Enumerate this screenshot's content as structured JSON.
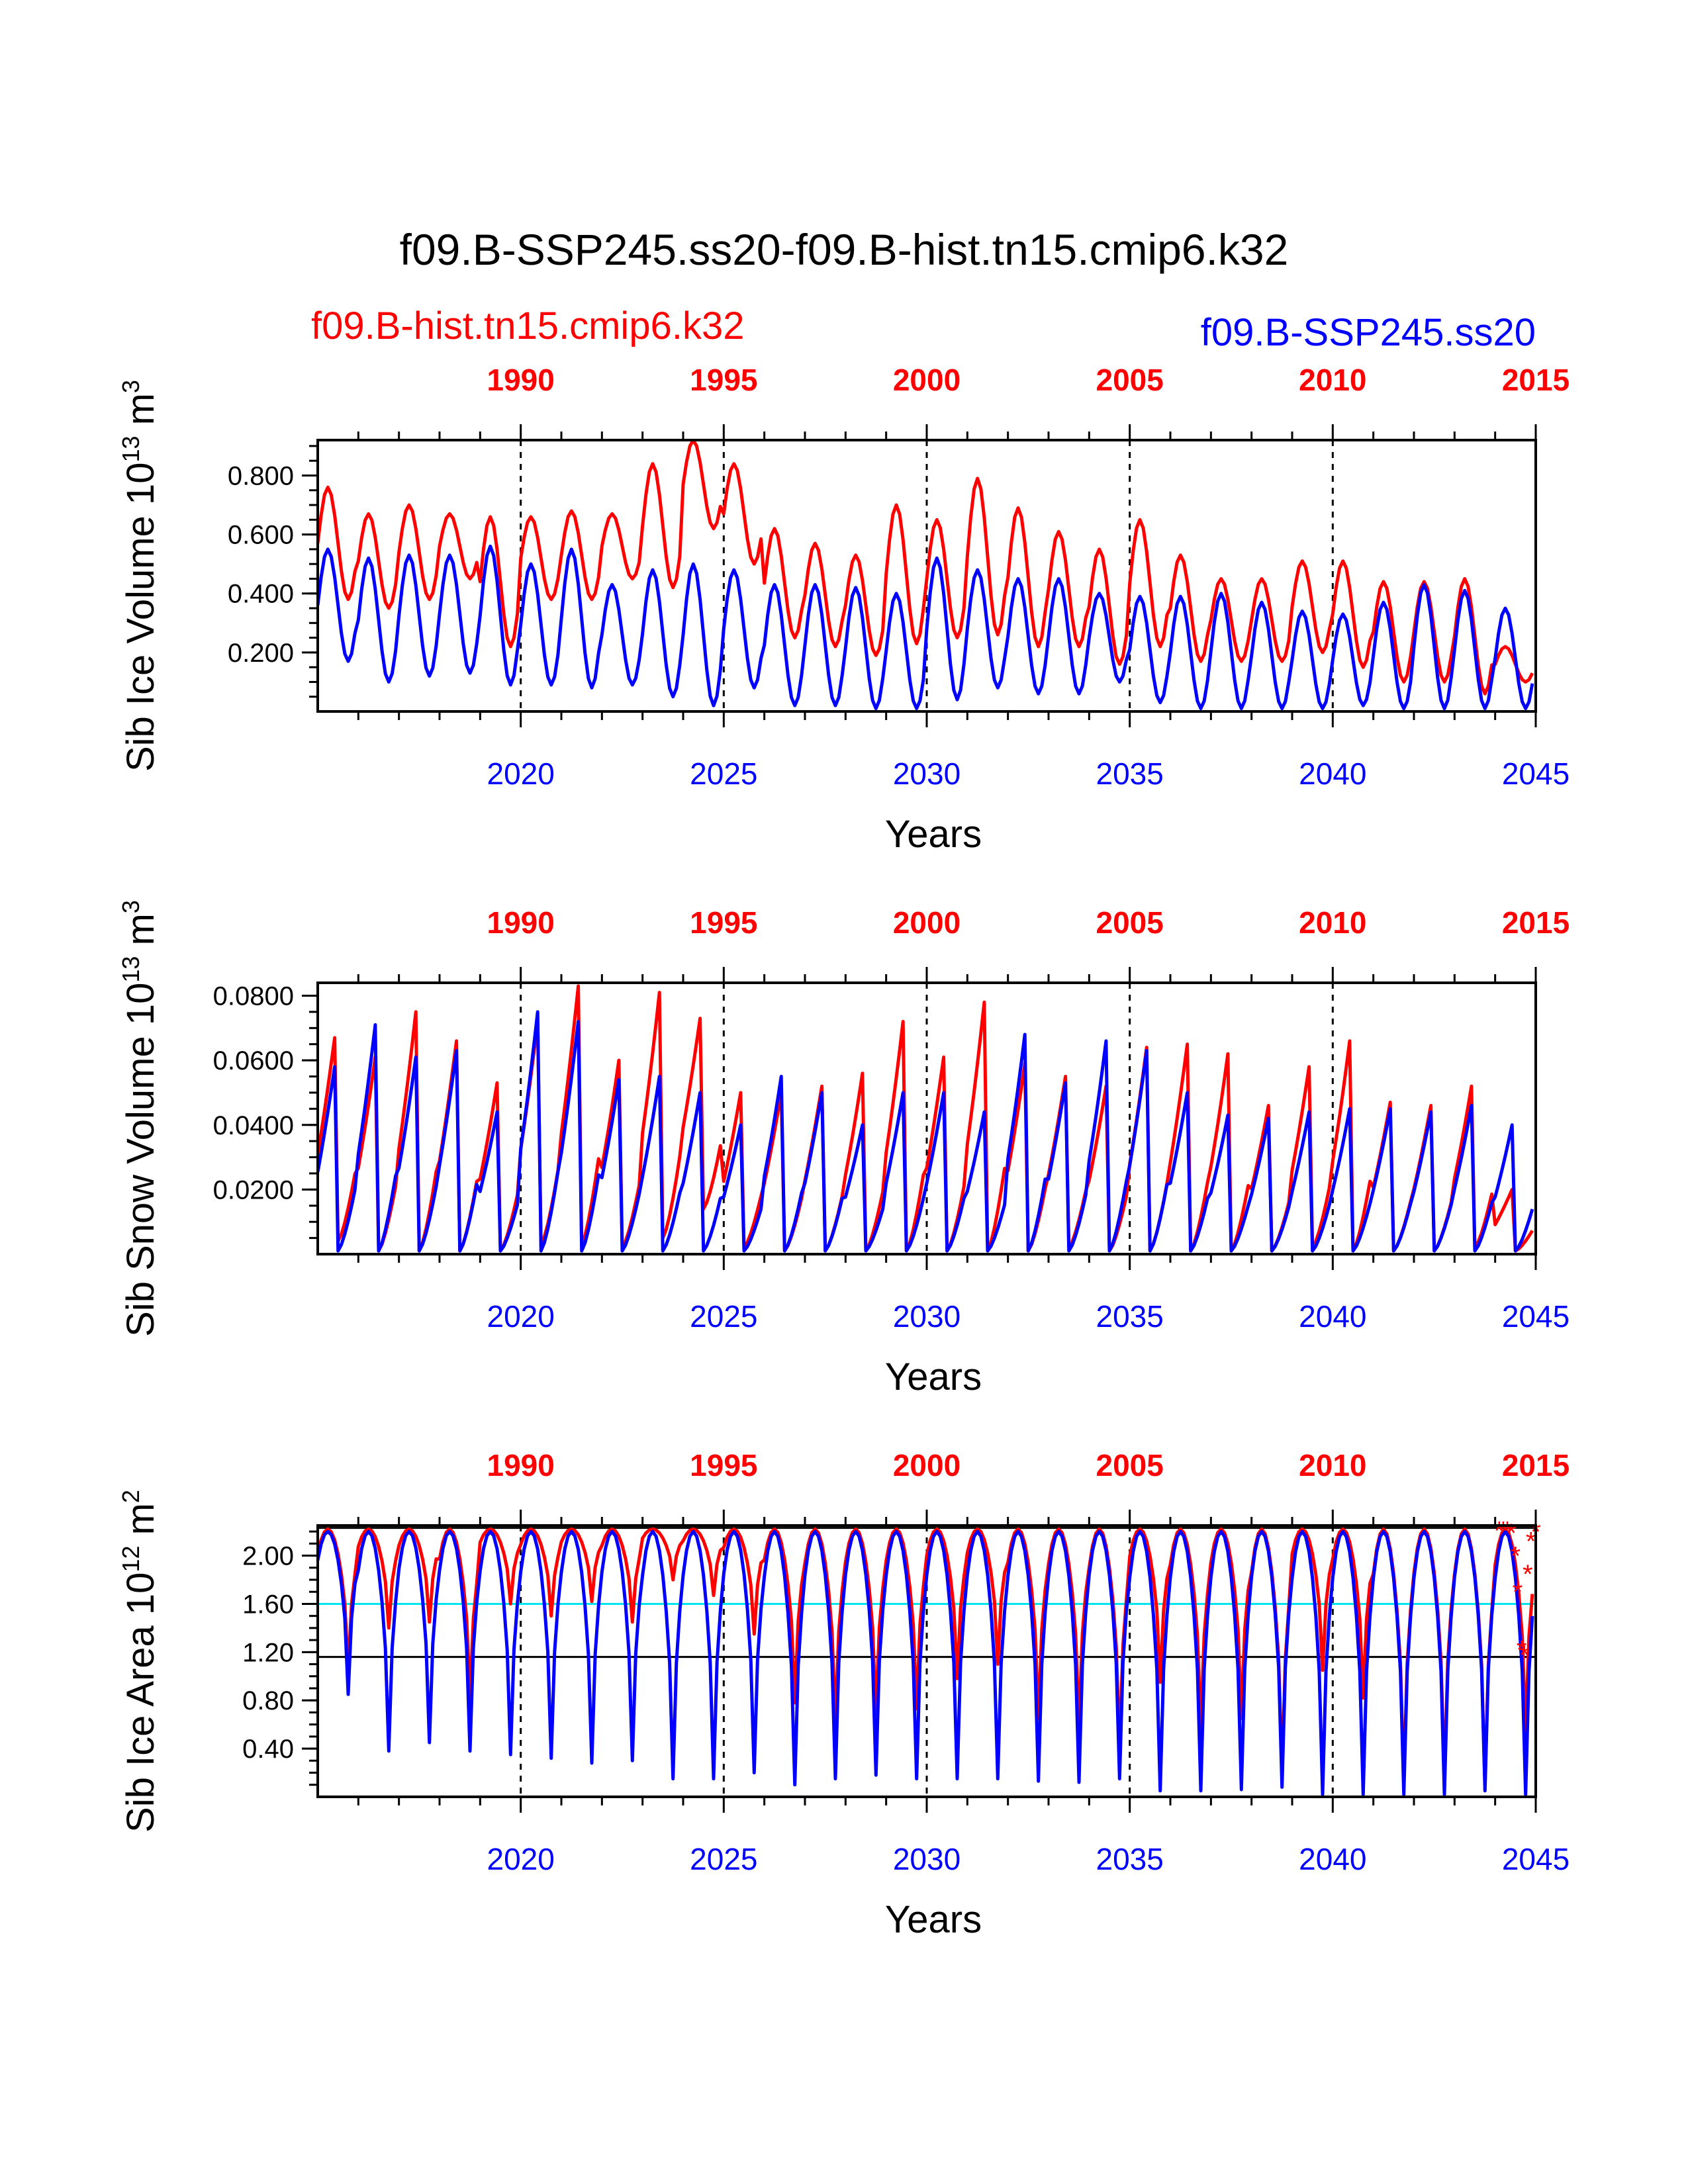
{
  "title": "f09.B-SSP245.ss20-f09.B-hist.tn15.cmip6.k32",
  "legend": {
    "red_label": "f09.B-hist.tn15.cmip6.k32",
    "blue_label": "f09.B-SSP245.ss20"
  },
  "colors": {
    "red": "#ff0000",
    "blue": "#0000ff",
    "cyan": "#00e5ee",
    "axes": "#000000"
  },
  "chart_data": [
    {
      "type": "line",
      "ylabel": "Sib Ice Volume",
      "ylabel_unit": "10^13 m^3",
      "ylabel_sup": "13",
      "ylabel_tail": "m",
      "ylabel_sup2": "3",
      "xlabel": "Years",
      "xlim": [
        2015,
        2045
      ],
      "ylim": [
        0,
        0.92
      ],
      "yticks": [
        "0.200",
        "0.400",
        "0.600",
        "0.800"
      ],
      "yticks_values": [
        0.2,
        0.4,
        0.6,
        0.8
      ],
      "bottom_axis": {
        "label_values": [
          2020,
          2025,
          2030,
          2035,
          2040,
          2045
        ],
        "labels": [
          "2020",
          "2025",
          "2030",
          "2035",
          "2040",
          "2045"
        ]
      },
      "top_axis": {
        "labels": [
          "1990",
          "1995",
          "2000",
          "2005",
          "2010",
          "2015"
        ],
        "positions": [
          2020,
          2025,
          2030,
          2035,
          2040,
          2045
        ]
      },
      "vertical_lines": [
        2020,
        2025,
        2030,
        2035,
        2040
      ],
      "series": [
        {
          "color": "red",
          "annual_max": [
            0.76,
            0.67,
            0.7,
            0.67,
            0.66,
            0.66,
            0.68,
            0.67,
            0.84,
            0.92,
            0.84,
            0.62,
            0.57,
            0.53,
            0.7,
            0.65,
            0.79,
            0.69,
            0.61,
            0.55,
            0.65,
            0.53,
            0.45,
            0.45,
            0.51,
            0.51,
            0.44,
            0.44,
            0.45,
            0.22
          ],
          "annual_min": [
            0.38,
            0.35,
            0.38,
            0.45,
            0.22,
            0.38,
            0.38,
            0.45,
            0.42,
            0.62,
            0.5,
            0.25,
            0.22,
            0.19,
            0.23,
            0.25,
            0.26,
            0.22,
            0.22,
            0.16,
            0.22,
            0.17,
            0.17,
            0.17,
            0.2,
            0.15,
            0.1,
            0.1,
            0.06,
            0.1
          ]
        },
        {
          "color": "blue",
          "annual_max": [
            0.55,
            0.52,
            0.53,
            0.53,
            0.56,
            0.5,
            0.55,
            0.43,
            0.48,
            0.5,
            0.48,
            0.43,
            0.43,
            0.42,
            0.4,
            0.52,
            0.48,
            0.45,
            0.45,
            0.4,
            0.39,
            0.39,
            0.4,
            0.37,
            0.34,
            0.33,
            0.37,
            0.43,
            0.41,
            0.35
          ],
          "annual_min": [
            0.17,
            0.1,
            0.12,
            0.13,
            0.09,
            0.09,
            0.08,
            0.09,
            0.05,
            0.02,
            0.08,
            0.02,
            0.02,
            0.01,
            0.01,
            0.04,
            0.08,
            0.06,
            0.06,
            0.1,
            0.03,
            0.01,
            0.01,
            0.01,
            0.01,
            0.02,
            0.01,
            0.01,
            0.01,
            0.01
          ]
        }
      ]
    },
    {
      "type": "line",
      "ylabel": "Sib Snow Volume",
      "ylabel_unit": "10^13 m^3",
      "ylabel_sup": "13",
      "ylabel_tail": "m",
      "ylabel_sup2": "3",
      "xlabel": "Years",
      "xlim": [
        2015,
        2045
      ],
      "ylim": [
        0,
        0.084
      ],
      "yticks": [
        "0.0200",
        "0.0400",
        "0.0600",
        "0.0800"
      ],
      "yticks_values": [
        0.02,
        0.04,
        0.06,
        0.08
      ],
      "bottom_axis": {
        "label_values": [
          2020,
          2025,
          2030,
          2035,
          2040,
          2045
        ],
        "labels": [
          "2020",
          "2025",
          "2030",
          "2035",
          "2040",
          "2045"
        ]
      },
      "top_axis": {
        "labels": [
          "1990",
          "1995",
          "2000",
          "2005",
          "2010",
          "2015"
        ],
        "positions": [
          2020,
          2025,
          2030,
          2035,
          2040,
          2045
        ]
      },
      "vertical_lines": [
        2020,
        2025,
        2030,
        2035,
        2040
      ],
      "series": [
        {
          "color": "red",
          "annual_max": [
            0.067,
            0.061,
            0.075,
            0.066,
            0.053,
            0.072,
            0.083,
            0.06,
            0.081,
            0.073,
            0.05,
            0.05,
            0.052,
            0.056,
            0.072,
            0.061,
            0.078,
            0.059,
            0.055,
            0.052,
            0.064,
            0.065,
            0.062,
            0.046,
            0.058,
            0.066,
            0.047,
            0.046,
            0.052,
            0.02
          ],
          "annual_min": [
            0.004,
            0.001,
            0.001,
            0.001,
            0.001,
            0.003,
            0.003,
            0.002,
            0.005,
            0.014,
            0.002,
            0.001,
            0.001,
            0.001,
            0.001,
            0.001,
            0.001,
            0.001,
            0.002,
            0.001,
            0.001,
            0.001,
            0.001,
            0.001,
            0.002,
            0.001,
            0.001,
            0.001,
            0.002,
            0.001
          ]
        },
        {
          "color": "blue",
          "annual_max": [
            0.058,
            0.071,
            0.061,
            0.063,
            0.044,
            0.075,
            0.072,
            0.054,
            0.055,
            0.05,
            0.04,
            0.055,
            0.05,
            0.04,
            0.05,
            0.05,
            0.044,
            0.068,
            0.053,
            0.066,
            0.063,
            0.05,
            0.043,
            0.042,
            0.044,
            0.045,
            0.045,
            0.044,
            0.046,
            0.04
          ],
          "annual_min": [
            0.001,
            0.001,
            0.001,
            0.001,
            0.001,
            0.001,
            0.001,
            0.001,
            0.001,
            0.001,
            0.001,
            0.001,
            0.001,
            0.001,
            0.001,
            0.001,
            0.001,
            0.001,
            0.001,
            0.001,
            0.001,
            0.001,
            0.001,
            0.001,
            0.001,
            0.001,
            0.001,
            0.001,
            0.001,
            0.001
          ]
        }
      ]
    },
    {
      "type": "line",
      "ylabel": "Sib Ice Area",
      "ylabel_unit": "10^12 m^2",
      "ylabel_sup": "12",
      "ylabel_tail": "m",
      "ylabel_sup2": "2",
      "xlabel": "Years",
      "xlim": [
        2015,
        2045
      ],
      "ylim": [
        0,
        2.25
      ],
      "yticks": [
        "0.40",
        "0.80",
        "1.20",
        "1.60",
        "2.00"
      ],
      "yticks_values": [
        0.4,
        0.8,
        1.2,
        1.6,
        2.0
      ],
      "bottom_axis": {
        "label_values": [
          2020,
          2025,
          2030,
          2035,
          2040,
          2045
        ],
        "labels": [
          "2020",
          "2025",
          "2030",
          "2035",
          "2040",
          "2045"
        ]
      },
      "top_axis": {
        "labels": [
          "1990",
          "1995",
          "2000",
          "2005",
          "2010",
          "2015"
        ],
        "positions": [
          2020,
          2025,
          2030,
          2035,
          2040,
          2045
        ]
      },
      "vertical_lines": [
        2020,
        2025,
        2030,
        2035,
        2040
      ],
      "reference_lines": [
        {
          "y": 2.23,
          "color": "axes"
        },
        {
          "y": 1.6,
          "color": "cyan"
        },
        {
          "y": 1.16,
          "color": "axes"
        }
      ],
      "series": [
        {
          "color": "red",
          "annual_max": [
            2.22,
            2.22,
            2.22,
            2.22,
            2.22,
            2.22,
            2.22,
            2.22,
            2.22,
            2.22,
            2.22,
            2.22,
            2.22,
            2.22,
            2.22,
            2.22,
            2.22,
            2.22,
            2.22,
            2.22,
            2.22,
            2.22,
            2.22,
            2.22,
            2.22,
            2.22,
            2.22,
            2.22,
            2.22,
            2.22
          ],
          "annual_min": [
            1.05,
            1.4,
            1.45,
            0.82,
            1.6,
            1.5,
            1.62,
            1.45,
            1.8,
            1.67,
            1.35,
            0.78,
            0.62,
            0.68,
            0.73,
            0.98,
            1.1,
            0.65,
            0.58,
            0.4,
            0.95,
            0.56,
            0.65,
            0.2,
            1.05,
            0.82,
            0.12,
            0.15,
            0.1,
            0.55
          ]
        },
        {
          "color": "blue",
          "annual_max": [
            2.2,
            2.2,
            2.2,
            2.2,
            2.2,
            2.2,
            2.2,
            2.2,
            2.2,
            2.2,
            2.2,
            2.2,
            2.2,
            2.2,
            2.2,
            2.2,
            2.2,
            2.2,
            2.2,
            2.2,
            2.2,
            2.2,
            2.2,
            2.2,
            2.2,
            2.2,
            2.2,
            2.2,
            2.2,
            2.2
          ],
          "annual_min": [
            0.85,
            0.38,
            0.45,
            0.38,
            0.35,
            0.32,
            0.28,
            0.3,
            0.15,
            0.15,
            0.2,
            0.1,
            0.15,
            0.18,
            0.15,
            0.15,
            0.15,
            0.13,
            0.12,
            0.15,
            0.05,
            0.05,
            0.06,
            0.08,
            0.02,
            0.02,
            0.02,
            0.02,
            0.05,
            0.02
          ]
        }
      ],
      "markers": {
        "color": "red",
        "symbol": "*",
        "points": [
          [
            2044.1,
            2.21
          ],
          [
            2044.2,
            2.21
          ],
          [
            2044.3,
            2.21
          ],
          [
            2044.4,
            2.19
          ],
          [
            2044.5,
            2.0
          ],
          [
            2044.55,
            1.7
          ],
          [
            2044.65,
            1.22
          ],
          [
            2044.72,
            1.18
          ],
          [
            2044.8,
            1.85
          ],
          [
            2044.88,
            2.12
          ],
          [
            2045.0,
            2.2
          ]
        ]
      }
    }
  ]
}
